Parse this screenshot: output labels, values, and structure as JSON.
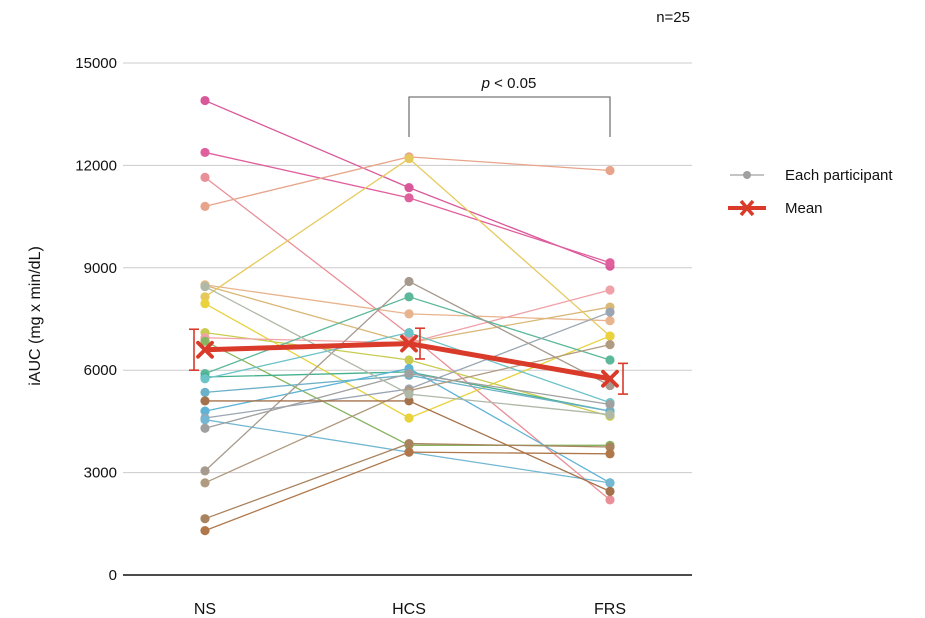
{
  "chart_data": {
    "type": "line",
    "title": "",
    "annotation_n": "n=25",
    "xlabel": "",
    "ylabel": "iAUC (mg x min/dL)",
    "ylim": [
      0,
      15000
    ],
    "yticks": [
      0,
      3000,
      6000,
      9000,
      12000,
      15000
    ],
    "categories": [
      "NS",
      "HCS",
      "FRS"
    ],
    "grid": true,
    "legend_position": "right",
    "legend": {
      "participant_label": "Each participant",
      "mean_label": "Mean"
    },
    "significance": {
      "label_italic": "p",
      "label_rest": " < 0.05",
      "from": "HCS",
      "to": "FRS"
    },
    "mean": {
      "values": [
        6600,
        6780,
        5750
      ],
      "error": [
        600,
        450,
        450
      ],
      "color": "#d93a2a"
    },
    "participants": [
      {
        "values": [
          13900,
          11350,
          9050
        ],
        "color": "#d9589a"
      },
      {
        "values": [
          12380,
          11050,
          9150
        ],
        "color": "#e0609e"
      },
      {
        "values": [
          11650,
          7050,
          2200
        ],
        "color": "#e98f98"
      },
      {
        "values": [
          10800,
          12250,
          11850
        ],
        "color": "#e8a48a"
      },
      {
        "values": [
          8500,
          7650,
          7450
        ],
        "color": "#e8b48d"
      },
      {
        "values": [
          8480,
          6800,
          7850
        ],
        "color": "#d9b878"
      },
      {
        "values": [
          8150,
          12200,
          7000
        ],
        "color": "#e6c95c"
      },
      {
        "values": [
          7950,
          4600,
          7000
        ],
        "color": "#e9d23c"
      },
      {
        "values": [
          7100,
          6300,
          4650
        ],
        "color": "#c9cc50"
      },
      {
        "values": [
          6950,
          6800,
          8350
        ],
        "color": "#f0a2a8"
      },
      {
        "values": [
          6850,
          3800,
          3800
        ],
        "color": "#88b560"
      },
      {
        "values": [
          5900,
          8150,
          6300
        ],
        "color": "#5cb89a"
      },
      {
        "values": [
          5800,
          5950,
          4800
        ],
        "color": "#46b08f"
      },
      {
        "values": [
          5750,
          7100,
          5050
        ],
        "color": "#6cc3c8"
      },
      {
        "values": [
          5350,
          5850,
          4800
        ],
        "color": "#6bb2c9"
      },
      {
        "values": [
          4800,
          6050,
          2700
        ],
        "color": "#5fb3d5"
      },
      {
        "values": [
          4600,
          5450,
          7700
        ],
        "color": "#9aa5b4"
      },
      {
        "values": [
          4550,
          3600,
          2700
        ],
        "color": "#73b7d2"
      },
      {
        "values": [
          4300,
          5900,
          5000
        ],
        "color": "#a0a0a0"
      },
      {
        "values": [
          3050,
          8600,
          5550
        ],
        "color": "#a69a8e"
      },
      {
        "values": [
          2700,
          5400,
          6750
        ],
        "color": "#b09a80"
      },
      {
        "values": [
          1650,
          3850,
          3750
        ],
        "color": "#a8835e"
      },
      {
        "values": [
          1300,
          3600,
          3550
        ],
        "color": "#b0774a"
      },
      {
        "values": [
          5100,
          5100,
          2450
        ],
        "color": "#a5714a"
      },
      {
        "values": [
          8450,
          5300,
          4700
        ],
        "color": "#b0b8a8"
      }
    ]
  }
}
